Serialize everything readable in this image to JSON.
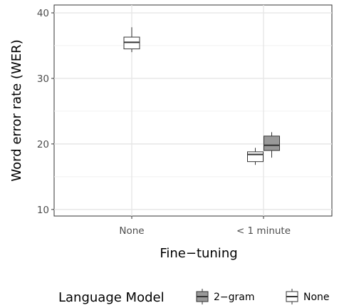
{
  "chart_data": {
    "type": "boxplot",
    "title": "",
    "xlabel": "Fine−tuning",
    "ylabel": "Word error rate (WER)",
    "categories": [
      "None",
      "< 1 minute"
    ],
    "ylim": [
      9,
      41.2
    ],
    "yticks": [
      10,
      20,
      30,
      40
    ],
    "ytick_labels": [
      "10",
      "20",
      "30",
      "40"
    ],
    "grid": true,
    "legend": {
      "title": "Language Model",
      "placement": "bottom",
      "entries": [
        "2−gram",
        "None"
      ]
    },
    "series": [
      {
        "name": "2−gram",
        "color": "#999999",
        "boxes": [
          {
            "category": "< 1 minute",
            "whisker_low": 17.9,
            "q1": 19.0,
            "median": 19.8,
            "q3": 21.2,
            "whisker_high": 21.8
          }
        ]
      },
      {
        "name": "None",
        "color": "#ffffff",
        "boxes": [
          {
            "category": "None",
            "whisker_low": 34.0,
            "q1": 34.5,
            "median": 35.5,
            "q3": 36.3,
            "whisker_high": 37.8
          },
          {
            "category": "< 1 minute",
            "whisker_low": 16.8,
            "q1": 17.3,
            "median": 18.4,
            "q3": 18.8,
            "whisker_high": 19.4
          }
        ]
      }
    ]
  }
}
